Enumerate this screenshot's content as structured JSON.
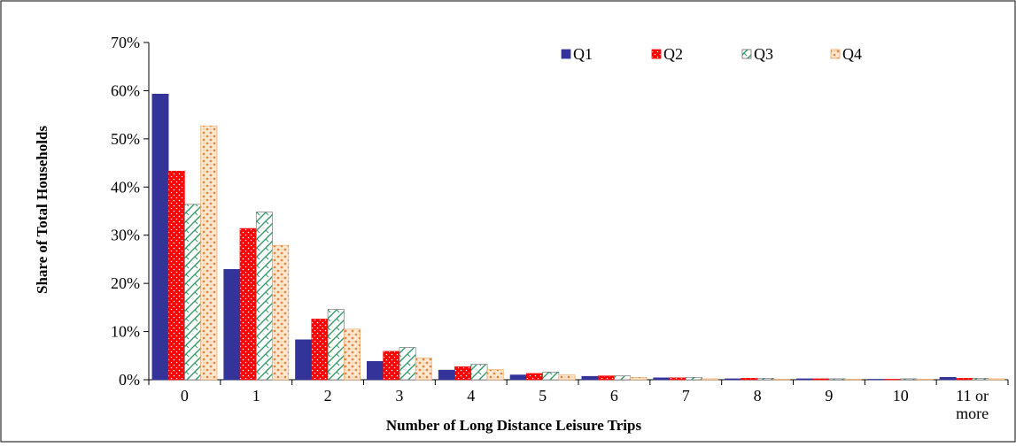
{
  "chart_data": {
    "type": "bar",
    "title": "",
    "xlabel": "Number of Long Distance Leisure Trips",
    "ylabel": "Share of Total Households",
    "ylim": [
      0,
      70
    ],
    "y_ticks": [
      "0%",
      "10%",
      "20%",
      "30%",
      "40%",
      "50%",
      "60%",
      "70%"
    ],
    "categories": [
      "0",
      "1",
      "2",
      "3",
      "4",
      "5",
      "6",
      "7",
      "8",
      "9",
      "10",
      "11 or more"
    ],
    "category_label_lines": [
      [
        "0"
      ],
      [
        "1"
      ],
      [
        "2"
      ],
      [
        "3"
      ],
      [
        "4"
      ],
      [
        "5"
      ],
      [
        "6"
      ],
      [
        "7"
      ],
      [
        "8"
      ],
      [
        "9"
      ],
      [
        "10"
      ],
      [
        "11 or",
        "more"
      ]
    ],
    "legend_position": "top-right",
    "grid": false,
    "series": [
      {
        "name": "Q1",
        "color": "#333399",
        "pattern": "solid",
        "values": [
          59.3,
          22.9,
          8.3,
          3.8,
          2.0,
          1.0,
          0.7,
          0.4,
          0.2,
          0.2,
          0.1,
          0.5
        ]
      },
      {
        "name": "Q2",
        "color": "#ff0000",
        "pattern": "dots",
        "values": [
          43.3,
          31.4,
          12.6,
          5.9,
          2.7,
          1.3,
          0.8,
          0.4,
          0.3,
          0.2,
          0.1,
          0.3
        ]
      },
      {
        "name": "Q3",
        "color": "#339966",
        "pattern": "diagonal-check",
        "values": [
          36.4,
          34.8,
          14.6,
          6.7,
          3.2,
          1.6,
          0.8,
          0.5,
          0.3,
          0.2,
          0.2,
          0.3
        ]
      },
      {
        "name": "Q4",
        "color": "#f4a460",
        "pattern": "confetti",
        "values": [
          52.7,
          27.9,
          10.5,
          4.5,
          2.1,
          1.0,
          0.5,
          0.2,
          0.1,
          0.1,
          0.1,
          0.2
        ]
      }
    ]
  }
}
